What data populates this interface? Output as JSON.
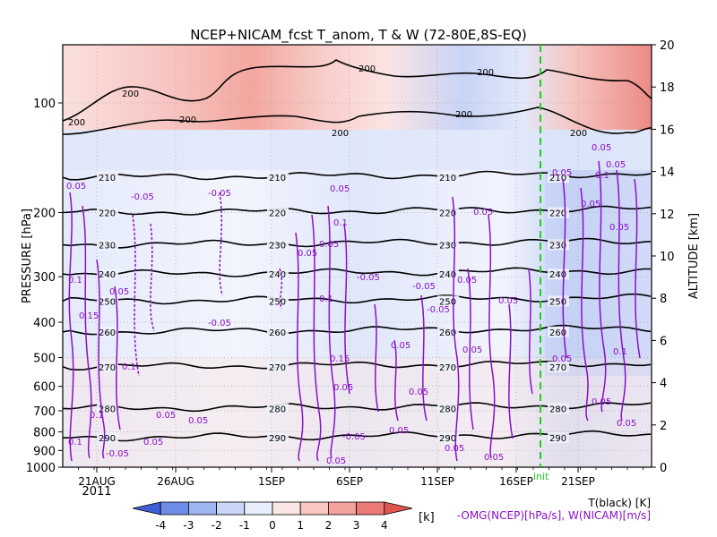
{
  "chart_data": {
    "type": "heatmap",
    "title": "NCEP+NICAM_fcst T_anom, T & W  (72-80E,8S-EQ)",
    "ylabel_left": "PRESSURE [hPa]",
    "ylabel_right": "ALTITUDE [km]",
    "pressure_ticks": [
      "100",
      "200",
      "300",
      "400",
      "500",
      "600",
      "700",
      "800",
      "900",
      "1000"
    ],
    "altitude_ticks": [
      "0",
      "2",
      "4",
      "6",
      "8",
      "10",
      "12",
      "14",
      "16",
      "18",
      "20"
    ],
    "x_tick_labels": [
      "21AUG",
      "26AUG",
      "1SEP",
      "6SEP",
      "11SEP",
      "16SEP",
      "21SEP"
    ],
    "year_label": "2011",
    "init_label": "init",
    "colorbar": {
      "ticks": [
        "-4",
        "-3",
        "-2",
        "-1",
        "0",
        "1",
        "2",
        "3",
        "4"
      ],
      "unit": "[k]",
      "colors": [
        "#3e5fd6",
        "#6d8ce8",
        "#9db5f0",
        "#c9d6f7",
        "#e8eefb",
        "#fbe6e6",
        "#f8c6c3",
        "#f3a29d",
        "#ec7a74",
        "#e05550"
      ]
    },
    "legend": {
      "black": "T(black) [K]",
      "purple": "-OMG(NCEP)[hPa/s], W(NICAM)[m/s]"
    },
    "temperature_contours": [
      {
        "label": "210",
        "p": 160
      },
      {
        "label": "220",
        "p": 200
      },
      {
        "label": "230",
        "p": 245
      },
      {
        "label": "240",
        "p": 295
      },
      {
        "label": "250",
        "p": 350
      },
      {
        "label": "260",
        "p": 425
      },
      {
        "label": "270",
        "p": 530
      },
      {
        "label": "280",
        "p": 690
      },
      {
        "label": "290",
        "p": 830
      }
    ],
    "contour_200_label": "200",
    "omega_labels": [
      "0.05",
      "-0.05",
      "0.1",
      "0.15"
    ]
  }
}
